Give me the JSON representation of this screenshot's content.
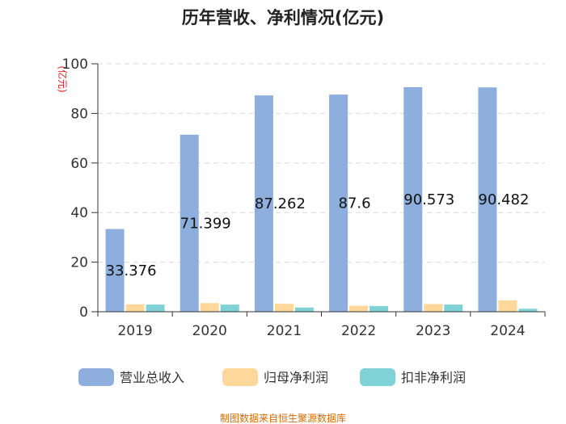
{
  "chart_data": {
    "type": "bar",
    "title": "历年营收、净利情况(亿元)",
    "ylabel": "(亿元)",
    "xlabel": "",
    "ylim": [
      0,
      100
    ],
    "yticks": [
      0,
      20,
      40,
      60,
      80,
      100
    ],
    "grid": true,
    "categories": [
      "2019",
      "2020",
      "2021",
      "2022",
      "2023",
      "2024"
    ],
    "series": [
      {
        "name": "营业总收入",
        "color": "#8eaedd",
        "values": [
          33.376,
          71.399,
          87.262,
          87.6,
          90.573,
          90.482
        ],
        "labels": [
          "33.376",
          "71.399",
          "87.262",
          "87.6",
          "90.573",
          "90.482"
        ]
      },
      {
        "name": "归母净利润",
        "color": "#fdd89a",
        "values": [
          3.0,
          3.5,
          3.2,
          2.4,
          3.1,
          4.6
        ]
      },
      {
        "name": "扣非净利润",
        "color": "#7fd3d6",
        "values": [
          2.9,
          2.9,
          1.7,
          2.3,
          2.9,
          1.2
        ]
      }
    ],
    "legend_position": "bottom"
  },
  "footer": "制图数据来自恒生聚源数据库"
}
